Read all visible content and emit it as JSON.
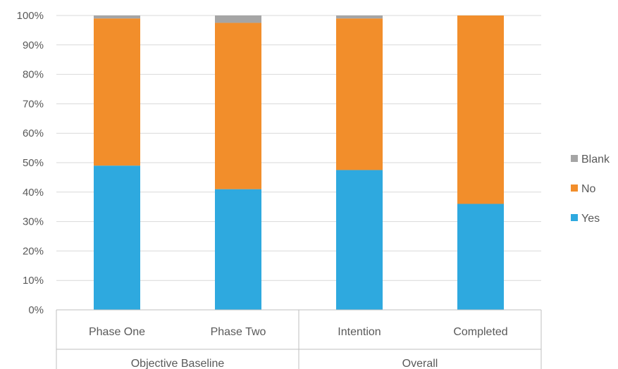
{
  "chart_data": {
    "type": "bar",
    "stacked": "percent",
    "categories": [
      "Phase One",
      "Phase Two",
      "Intention",
      "Completed"
    ],
    "groups": [
      {
        "label": "Objective Baseline",
        "categories": [
          "Phase One",
          "Phase Two"
        ]
      },
      {
        "label": "Overall",
        "categories": [
          "Intention",
          "Completed"
        ]
      }
    ],
    "series": [
      {
        "name": "Yes",
        "color": "#2EA9DF",
        "values": [
          49,
          41,
          47.5,
          36
        ]
      },
      {
        "name": "No",
        "color": "#F28E2B",
        "values": [
          50,
          56.5,
          51.5,
          64
        ]
      },
      {
        "name": "Blank",
        "color": "#A5A5A5",
        "values": [
          1,
          2.5,
          1,
          0
        ]
      }
    ],
    "legend_order": [
      "Blank",
      "No",
      "Yes"
    ],
    "y_ticks": [
      "0%",
      "10%",
      "20%",
      "30%",
      "40%",
      "50%",
      "60%",
      "70%",
      "80%",
      "90%",
      "100%"
    ],
    "ylim": [
      0,
      100
    ],
    "grid": true,
    "legend_position": "right"
  }
}
